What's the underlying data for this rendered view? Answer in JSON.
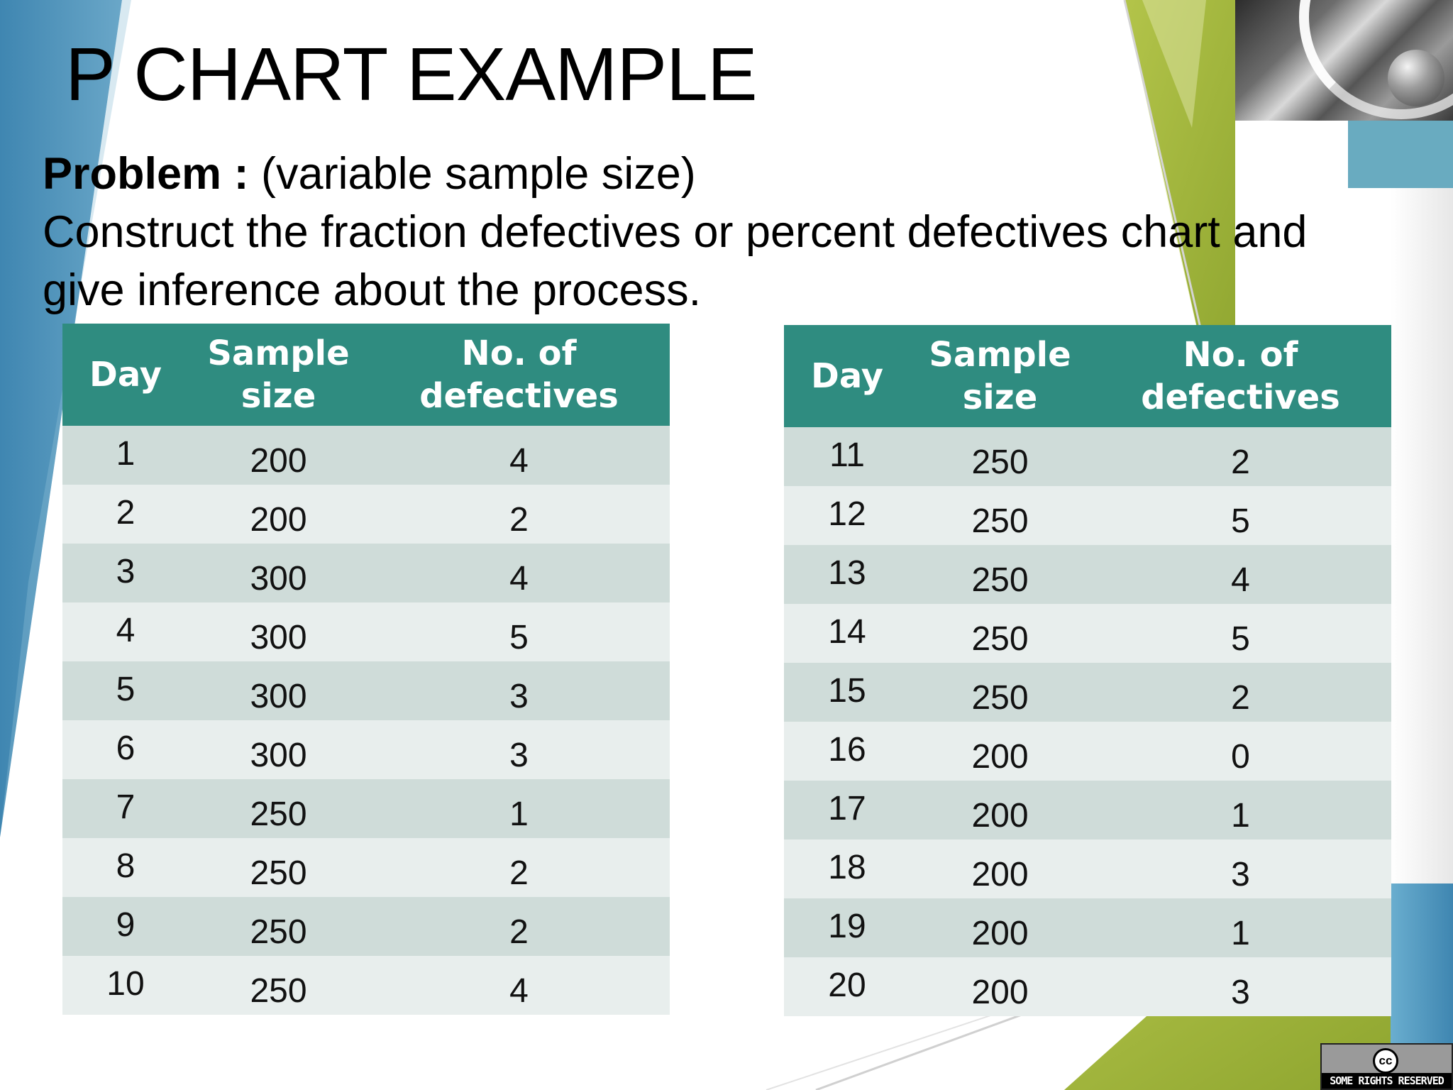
{
  "slide": {
    "title": "P CHART EXAMPLE",
    "problem_label": "Problem :",
    "problem_qualifier": " (variable sample size)",
    "problem_text": "Construct the fraction defectives or percent defectives chart and give inference about the process."
  },
  "table_headers": {
    "day": "Day",
    "sample_line1": "Sample",
    "sample_line2": "size",
    "defect_line1": "No. of",
    "defect_line2": "defectives"
  },
  "table_left": {
    "rows": [
      {
        "day": "1",
        "n": "200",
        "d": "4"
      },
      {
        "day": "2",
        "n": "200",
        "d": "2"
      },
      {
        "day": "3",
        "n": "300",
        "d": "4"
      },
      {
        "day": "4",
        "n": "300",
        "d": "5"
      },
      {
        "day": "5",
        "n": "300",
        "d": "3"
      },
      {
        "day": "6",
        "n": "300",
        "d": "3"
      },
      {
        "day": "7",
        "n": "250",
        "d": "1"
      },
      {
        "day": "8",
        "n": "250",
        "d": "2"
      },
      {
        "day": "9",
        "n": "250",
        "d": "2"
      },
      {
        "day": "10",
        "n": "250",
        "d": "4"
      }
    ]
  },
  "table_right": {
    "rows": [
      {
        "day": "11",
        "n": "250",
        "d": "2"
      },
      {
        "day": "12",
        "n": "250",
        "d": "5"
      },
      {
        "day": "13",
        "n": "250",
        "d": "4"
      },
      {
        "day": "14",
        "n": "250",
        "d": "5"
      },
      {
        "day": "15",
        "n": "250",
        "d": "2"
      },
      {
        "day": "16",
        "n": "200",
        "d": "0"
      },
      {
        "day": "17",
        "n": "200",
        "d": "1"
      },
      {
        "day": "18",
        "n": "200",
        "d": "3"
      },
      {
        "day": "19",
        "n": "200",
        "d": "1"
      },
      {
        "day": "20",
        "n": "200",
        "d": "3"
      }
    ]
  },
  "license": {
    "icon_text": "cc",
    "label": "SOME RIGHTS RESERVED",
    "icon": "creative-commons-icon"
  },
  "colors": {
    "header_teal": "#2f8c80",
    "row_dark": "#cfdcd9",
    "row_light": "#e8eeed",
    "accent_blue": "#4f92b8",
    "accent_green": "#9fb43a"
  }
}
